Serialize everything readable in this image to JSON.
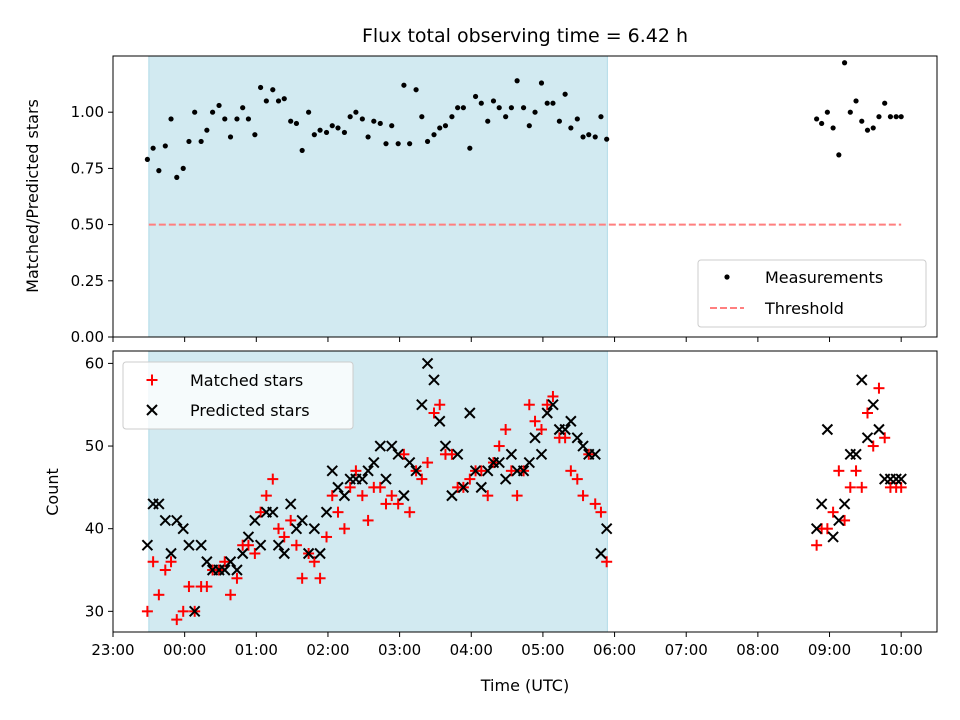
{
  "chart_data": {
    "title": "Flux total observing time = 6.42 h",
    "xlabel": "Time (UTC)",
    "x_unit": "hours since 00:00 UTC",
    "xlim": [
      -1.0,
      10.5
    ],
    "xticks": [
      {
        "value": -1,
        "label": "23:00"
      },
      {
        "value": 0,
        "label": "00:00"
      },
      {
        "value": 1,
        "label": "01:00"
      },
      {
        "value": 2,
        "label": "02:00"
      },
      {
        "value": 3,
        "label": "03:00"
      },
      {
        "value": 4,
        "label": "04:00"
      },
      {
        "value": 5,
        "label": "05:00"
      },
      {
        "value": 6,
        "label": "06:00"
      },
      {
        "value": 7,
        "label": "07:00"
      },
      {
        "value": 8,
        "label": "08:00"
      },
      {
        "value": 9,
        "label": "09:00"
      },
      {
        "value": 10,
        "label": "10:00"
      }
    ],
    "shaded_region": {
      "x_start": -0.5,
      "x_end": 5.9,
      "color": "#add8e6"
    },
    "top": {
      "type": "scatter",
      "ylabel": "Matched/Predicted stars",
      "ylim": [
        0,
        1.25
      ],
      "yticks": [
        {
          "value": 0,
          "label": "0.00"
        },
        {
          "value": 0.25,
          "label": "0.25"
        },
        {
          "value": 0.5,
          "label": "0.50"
        },
        {
          "value": 0.75,
          "label": "0.75"
        },
        {
          "value": 1.0,
          "label": "1.00"
        }
      ],
      "threshold": {
        "name": "Threshold",
        "y": 0.5,
        "x_start": -0.5,
        "x_end": 10.0,
        "color": "#ff7f7f"
      },
      "legend": {
        "position": "lower-right",
        "entries": [
          "Measurements",
          "Threshold"
        ]
      },
      "measurements": {
        "name": "Measurements",
        "color": "#000000",
        "x": [
          -0.52,
          -0.44,
          -0.36,
          -0.27,
          -0.19,
          -0.11,
          -0.02,
          0.06,
          0.14,
          0.23,
          0.31,
          0.39,
          0.48,
          0.56,
          0.64,
          0.73,
          0.81,
          0.89,
          0.98,
          1.06,
          1.14,
          1.23,
          1.31,
          1.39,
          1.48,
          1.56,
          1.64,
          1.73,
          1.81,
          1.89,
          1.98,
          2.06,
          2.14,
          2.23,
          2.31,
          2.39,
          2.48,
          2.56,
          2.64,
          2.73,
          2.81,
          2.89,
          2.98,
          3.06,
          3.14,
          3.23,
          3.31,
          3.39,
          3.48,
          3.56,
          3.64,
          3.73,
          3.81,
          3.89,
          3.98,
          4.06,
          4.14,
          4.23,
          4.31,
          4.39,
          4.48,
          4.56,
          4.64,
          4.73,
          4.81,
          4.89,
          4.98,
          5.06,
          5.14,
          5.23,
          5.31,
          5.39,
          5.48,
          5.56,
          5.64,
          5.73,
          5.81,
          5.89,
          8.82,
          8.89,
          8.97,
          9.05,
          9.13,
          9.21,
          9.29,
          9.37,
          9.45,
          9.53,
          9.61,
          9.69,
          9.77,
          9.85,
          9.93,
          10.0
        ],
        "y": [
          0.79,
          0.84,
          0.74,
          0.85,
          0.97,
          0.71,
          0.75,
          0.87,
          1.0,
          0.87,
          0.92,
          1.0,
          1.03,
          0.97,
          0.89,
          0.97,
          1.02,
          0.97,
          0.9,
          1.11,
          1.05,
          1.1,
          1.05,
          1.06,
          0.96,
          0.95,
          0.83,
          1.0,
          0.9,
          0.92,
          0.91,
          0.94,
          0.93,
          0.91,
          0.98,
          1.0,
          0.97,
          0.89,
          0.96,
          0.95,
          0.86,
          0.94,
          0.86,
          1.12,
          0.86,
          1.1,
          0.98,
          0.87,
          0.9,
          0.93,
          0.94,
          0.98,
          1.02,
          1.02,
          0.84,
          1.07,
          1.04,
          0.96,
          1.05,
          1.02,
          0.98,
          1.02,
          1.14,
          1.02,
          0.94,
          1.0,
          1.13,
          1.04,
          1.04,
          0.96,
          1.08,
          0.93,
          0.97,
          0.89,
          0.9,
          0.89,
          0.98,
          0.88,
          0.97,
          0.95,
          1.0,
          0.93,
          0.81,
          1.22,
          1.0,
          1.05,
          0.96,
          0.92,
          0.93,
          0.98,
          1.04,
          0.98,
          0.98,
          0.98
        ]
      }
    },
    "bottom": {
      "type": "scatter",
      "ylabel": "Count",
      "ylim": [
        27.5,
        61.5
      ],
      "yticks": [
        {
          "value": 30,
          "label": "30"
        },
        {
          "value": 40,
          "label": "40"
        },
        {
          "value": 50,
          "label": "50"
        },
        {
          "value": 60,
          "label": "60"
        }
      ],
      "legend": {
        "position": "upper-left",
        "entries": [
          "Matched stars",
          "Predicted stars"
        ]
      },
      "series": [
        {
          "name": "Matched stars",
          "marker": "plus",
          "color": "#ff0000",
          "x": [
            -0.52,
            -0.44,
            -0.36,
            -0.27,
            -0.19,
            -0.11,
            -0.02,
            0.06,
            0.14,
            0.23,
            0.31,
            0.39,
            0.48,
            0.56,
            0.64,
            0.73,
            0.81,
            0.89,
            0.98,
            1.06,
            1.14,
            1.23,
            1.31,
            1.39,
            1.48,
            1.56,
            1.64,
            1.73,
            1.81,
            1.89,
            1.98,
            2.06,
            2.14,
            2.23,
            2.31,
            2.39,
            2.48,
            2.56,
            2.64,
            2.73,
            2.81,
            2.89,
            2.98,
            3.06,
            3.14,
            3.23,
            3.31,
            3.39,
            3.48,
            3.56,
            3.64,
            3.73,
            3.81,
            3.89,
            3.98,
            4.06,
            4.14,
            4.23,
            4.31,
            4.39,
            4.48,
            4.56,
            4.64,
            4.73,
            4.81,
            4.89,
            4.98,
            5.06,
            5.14,
            5.23,
            5.31,
            5.39,
            5.48,
            5.56,
            5.64,
            5.73,
            5.81,
            5.89,
            8.82,
            8.89,
            8.97,
            9.05,
            9.13,
            9.21,
            9.29,
            9.37,
            9.45,
            9.53,
            9.61,
            9.69,
            9.77,
            9.85,
            9.93,
            10.0
          ],
          "y": [
            30,
            36,
            32,
            35,
            36,
            29,
            30,
            33,
            30,
            33,
            33,
            35,
            35,
            36,
            32,
            34,
            38,
            38,
            37,
            42,
            44,
            46,
            40,
            39,
            41,
            38,
            34,
            37,
            36,
            34,
            39,
            44,
            42,
            40,
            45,
            47,
            44,
            41,
            45,
            45,
            43,
            44,
            43,
            49,
            42,
            47,
            46,
            48,
            54,
            55,
            49,
            49,
            45,
            45,
            46,
            47,
            47,
            44,
            48,
            50,
            52,
            47,
            44,
            47,
            55,
            53,
            52,
            55,
            56,
            51,
            51,
            47,
            46,
            44,
            49,
            43,
            42,
            36,
            38,
            40,
            40,
            42,
            47,
            41,
            45,
            47,
            45,
            54,
            50,
            57,
            51,
            45,
            45,
            45
          ]
        },
        {
          "name": "Predicted stars",
          "marker": "x",
          "color": "#000000",
          "x": [
            -0.52,
            -0.44,
            -0.36,
            -0.27,
            -0.19,
            -0.11,
            -0.02,
            0.06,
            0.14,
            0.23,
            0.31,
            0.39,
            0.48,
            0.56,
            0.64,
            0.73,
            0.81,
            0.89,
            0.98,
            1.06,
            1.14,
            1.23,
            1.31,
            1.39,
            1.48,
            1.56,
            1.64,
            1.73,
            1.81,
            1.89,
            1.98,
            2.06,
            2.14,
            2.23,
            2.31,
            2.39,
            2.48,
            2.56,
            2.64,
            2.73,
            2.81,
            2.89,
            2.98,
            3.06,
            3.14,
            3.23,
            3.31,
            3.39,
            3.48,
            3.56,
            3.64,
            3.73,
            3.81,
            3.89,
            3.98,
            4.06,
            4.14,
            4.23,
            4.31,
            4.39,
            4.48,
            4.56,
            4.64,
            4.73,
            4.81,
            4.89,
            4.98,
            5.06,
            5.14,
            5.23,
            5.31,
            5.39,
            5.48,
            5.56,
            5.64,
            5.73,
            5.81,
            5.89,
            8.82,
            8.89,
            8.97,
            9.05,
            9.13,
            9.21,
            9.29,
            9.37,
            9.45,
            9.53,
            9.61,
            9.69,
            9.77,
            9.85,
            9.93,
            10.0
          ],
          "y": [
            38,
            43,
            43,
            41,
            37,
            41,
            40,
            38,
            30,
            38,
            36,
            35,
            35,
            35,
            36,
            35,
            37,
            39,
            41,
            38,
            42,
            42,
            38,
            37,
            43,
            40,
            41,
            37,
            40,
            37,
            42,
            47,
            45,
            44,
            46,
            46,
            46,
            47,
            48,
            50,
            46,
            50,
            49,
            44,
            48,
            47,
            55,
            60,
            58,
            53,
            50,
            44,
            49,
            45,
            54,
            47,
            45,
            47,
            48,
            48,
            46,
            49,
            47,
            47,
            48,
            51,
            49,
            54,
            55,
            52,
            52,
            53,
            51,
            50,
            49,
            49,
            37,
            40,
            40,
            43,
            52,
            39,
            41,
            43,
            49,
            49,
            58,
            51,
            55,
            52,
            46,
            46,
            46,
            46
          ]
        }
      ]
    }
  }
}
